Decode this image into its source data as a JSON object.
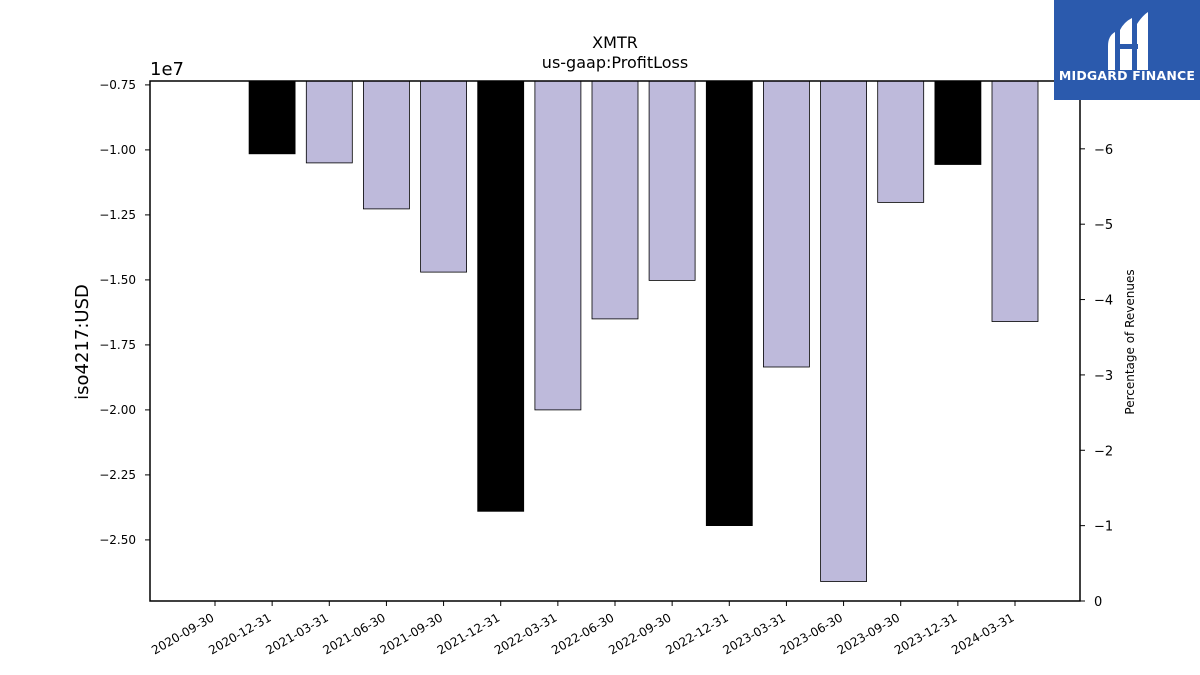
{
  "chart_data": {
    "type": "bar",
    "title": "XMTR",
    "subtitle": "us-gaap:ProfitLoss",
    "ylabel": "iso4217:USD",
    "y2label": "Percentage of Revenues",
    "offset_text": "1e7",
    "categories": [
      "2020-09-30",
      "2020-12-31",
      "2021-03-31",
      "2021-06-30",
      "2021-09-30",
      "2021-12-31",
      "2022-03-31",
      "2022-06-30",
      "2022-09-30",
      "2022-12-31",
      "2023-03-31",
      "2023-06-30",
      "2023-09-30",
      "2023-12-31",
      "2024-03-31"
    ],
    "values": [
      null,
      -10150000,
      -10500000,
      -12270000,
      -14700000,
      -23900000,
      -20000000,
      -16500000,
      -15020000,
      -24450000,
      -18350000,
      -26600000,
      -12020000,
      -10560000,
      -16600000
    ],
    "bar_colors": [
      null,
      "#000000",
      "#bebadb",
      "#bebadb",
      "#bebadb",
      "#000000",
      "#bebadb",
      "#bebadb",
      "#bebadb",
      "#000000",
      "#bebadb",
      "#bebadb",
      "#bebadb",
      "#000000",
      "#bebadb"
    ],
    "ylim": [
      -27350000,
      -7350000
    ],
    "yticks": [
      -7500000,
      -10000000,
      -12500000,
      -15000000,
      -17500000,
      -20000000,
      -22500000,
      -25000000
    ],
    "ytick_labels": [
      "−0.75",
      "−1.00",
      "−1.25",
      "−1.50",
      "−1.75",
      "−2.00",
      "−2.25",
      "−2.50"
    ],
    "y2lim": [
      0,
      -6.9
    ],
    "y2ticks": [
      0,
      -1,
      -2,
      -3,
      -4,
      -5,
      -6
    ],
    "y2tick_labels": [
      "0",
      "−1",
      "−2",
      "−3",
      "−4",
      "−5",
      "−6"
    ],
    "grid": false
  },
  "logo": {
    "text": "MIDGARD FINANCE"
  }
}
